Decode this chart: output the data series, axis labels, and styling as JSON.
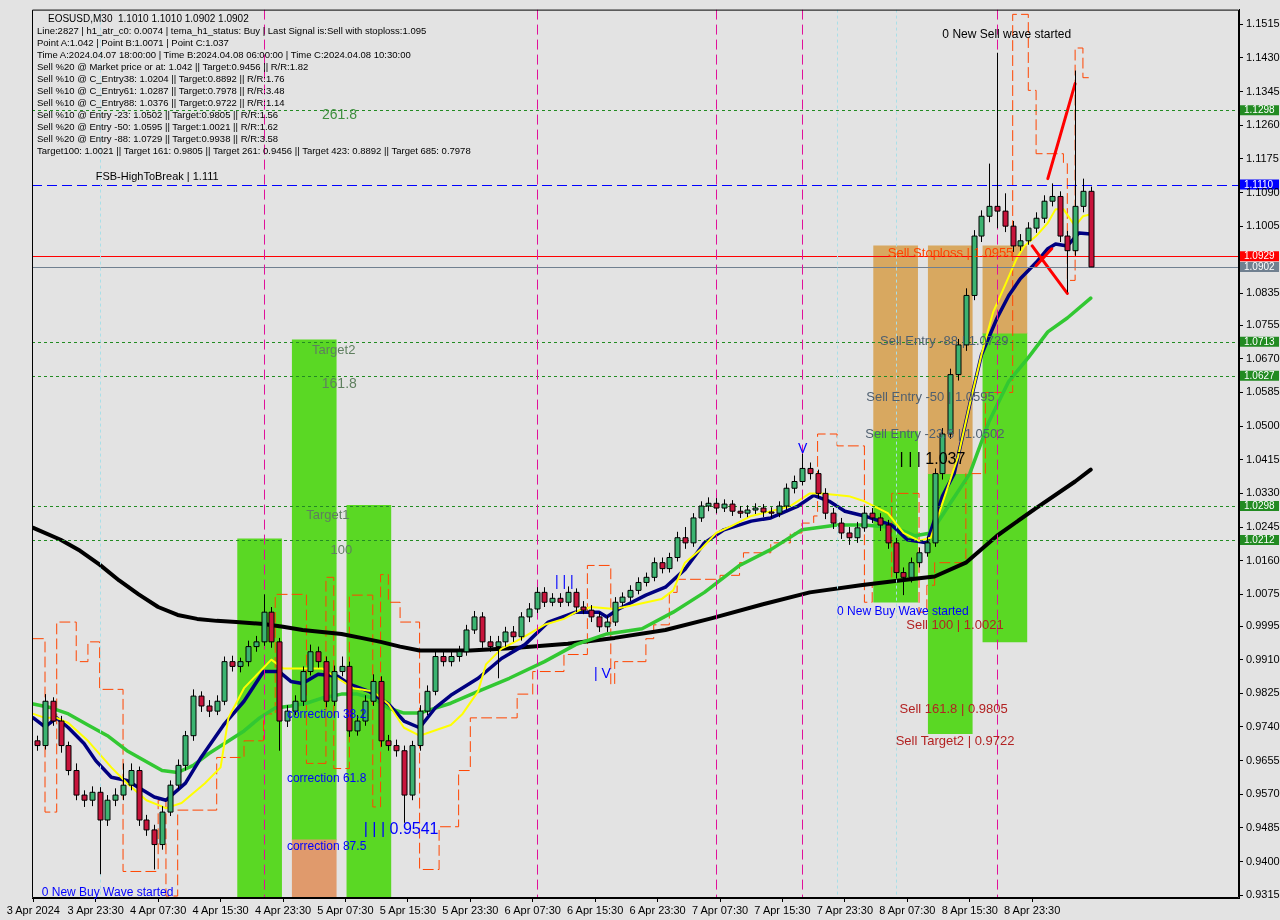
{
  "chart_data": {
    "type": "candlestick",
    "title": "EOSUSD,M30  1.1010 1.1010 1.0902 1.0902",
    "annotations": [
      "Line:2827 | h1_atr_c0: 0.0074 | tema_h1_status: Buy | Last Signal is:Sell with stoploss:1.095",
      "Point A:1.042 | Point B:1.0071 | Point C:1.037",
      "Time A:2024.04.07 18:00:00 | Time B:2024.04.08 06:00:00 | Time C:2024.04.08 10:30:00",
      "Sell %20 @ Market price or at: 1.042 || Target:0.9456 || R/R:1.82",
      "Sell %10 @ C_Entry38: 1.0204 || Target:0.8892 || R/R:1.76",
      "Sell %10 @ C_Entry61: 1.0287 || Target:0.7978 || R/R:3.48",
      "Sell %10 @ C_Entry88: 1.0376 || Target:0.9722 || R/R:1.14",
      "Sell %10 @ Entry -23: 1.0502 || Target:0.9805 || R/R:1.56",
      "Sell %20 @ Entry -50: 1.0595 || Target:1.0021 || R/R:1.62",
      "Sell %20 @ Entry -88: 1.0729 || Target:0.9938 || R/R:3.58",
      "Target100: 1.0021 || Target 161: 0.9805 || Target 261: 0.9456 || Target 423: 0.8892 || Target 685: 0.7978",
      "Target2",
      "161.8",
      "Target1",
      "100",
      "| | | 0.9541",
      "0 New Buy Wave started",
      "| | |",
      "| V",
      "Sell Entry -50 | 1.0595",
      "Sell Entry -23.6 | 1.0502",
      "Sell 100 | 1.0021",
      "0 New Sell wave started",
      {
        "text": "FSB-HighToBreak | 1.111",
        "x": "2024-04-03T23:30",
        "y": 1.1128
      },
      {
        "text": "261.8",
        "x": "2024-04-05T04:30",
        "y": 1.1285
      },
      {
        "text": "correction 38.2",
        "x": "2024-04-05T00:00",
        "y": 0.977
      },
      {
        "text": "correction 61.8",
        "x": "2024-04-05T00:00",
        "y": 0.961
      },
      {
        "text": "correction 87.5",
        "x": "2024-04-05T00:00",
        "y": 0.9438
      },
      {
        "text": "V",
        "x": "2024-04-07T17:30",
        "y": 1.0443
      },
      {
        "text": "0 New Buy Wave started",
        "x": "2024-04-07T22:30",
        "y": 1.003
      },
      {
        "text": "Sell Stoploss | 1.0955",
        "x": "2024-04-08T05:00",
        "y": 1.0935
      },
      {
        "text": "Sell Entry -88 | 1.0729",
        "x": "2024-04-08T04:00",
        "y": 1.0715
      },
      {
        "text": "| | | 1.037",
        "x": "2024-04-08T06:30",
        "y": 1.0415
      },
      {
        "text": "Sell 161.8 | 0.9805",
        "x": "2024-04-08T06:30",
        "y": 0.9785
      },
      {
        "text": "Sell Target2 | 0.9722",
        "x": "2024-04-08T06:00",
        "y": 0.9703
      }
    ],
    "x": [
      "2024-04-03T16:00",
      "2024-04-03T17:00",
      "2024-04-03T18:00",
      "2024-04-03T19:00",
      "2024-04-03T20:00",
      "2024-04-03T21:00",
      "2024-04-03T22:00",
      "2024-04-03T23:00",
      "2024-04-04T00:00",
      "2024-04-04T01:00",
      "2024-04-04T02:00",
      "2024-04-04T03:00",
      "2024-04-04T04:00",
      "2024-04-04T05:00",
      "2024-04-04T06:00",
      "2024-04-04T07:00",
      "2024-04-04T08:00",
      "2024-04-04T09:00",
      "2024-04-04T10:00",
      "2024-04-04T11:00",
      "2024-04-04T12:00",
      "2024-04-04T13:00",
      "2024-04-04T14:00",
      "2024-04-04T15:00",
      "2024-04-04T16:00",
      "2024-04-04T17:00",
      "2024-04-04T18:00",
      "2024-04-04T19:00",
      "2024-04-04T20:00",
      "2024-04-04T21:00",
      "2024-04-04T22:00",
      "2024-04-04T23:00",
      "2024-04-05T00:00",
      "2024-04-05T01:00",
      "2024-04-05T02:00",
      "2024-04-05T03:00",
      "2024-04-05T04:00",
      "2024-04-05T05:00",
      "2024-04-05T06:00",
      "2024-04-05T07:00",
      "2024-04-05T08:00",
      "2024-04-05T09:00",
      "2024-04-05T10:00",
      "2024-04-05T11:00",
      "2024-04-05T12:00",
      "2024-04-05T13:00",
      "2024-04-05T14:00",
      "2024-04-05T15:00",
      "2024-04-05T16:00",
      "2024-04-05T17:00",
      "2024-04-05T18:00",
      "2024-04-05T19:00",
      "2024-04-05T20:00",
      "2024-04-05T21:00",
      "2024-04-05T22:00",
      "2024-04-05T23:00",
      "2024-04-06T00:00",
      "2024-04-06T01:00",
      "2024-04-06T02:00",
      "2024-04-06T03:00",
      "2024-04-06T04:00",
      "2024-04-06T05:00",
      "2024-04-06T06:00",
      "2024-04-06T07:00",
      "2024-04-06T08:00",
      "2024-04-06T09:00",
      "2024-04-06T10:00",
      "2024-04-06T11:00",
      "2024-04-06T12:00",
      "2024-04-06T13:00",
      "2024-04-06T14:00",
      "2024-04-06T15:00",
      "2024-04-06T16:00",
      "2024-04-06T17:00",
      "2024-04-06T18:00",
      "2024-04-06T19:00",
      "2024-04-06T20:00",
      "2024-04-06T21:00",
      "2024-04-06T22:00",
      "2024-04-06T23:00",
      "2024-04-07T00:00",
      "2024-04-07T01:00",
      "2024-04-07T02:00",
      "2024-04-07T03:00",
      "2024-04-07T04:00",
      "2024-04-07T05:00",
      "2024-04-07T06:00",
      "2024-04-07T07:00",
      "2024-04-07T08:00",
      "2024-04-07T09:00",
      "2024-04-07T10:00",
      "2024-04-07T11:00",
      "2024-04-07T12:00",
      "2024-04-07T13:00",
      "2024-04-07T14:00",
      "2024-04-07T15:00",
      "2024-04-07T16:00",
      "2024-04-07T17:00",
      "2024-04-07T18:00",
      "2024-04-07T19:00",
      "2024-04-07T20:00",
      "2024-04-07T21:00",
      "2024-04-07T22:00",
      "2024-04-07T23:00",
      "2024-04-08T00:00",
      "2024-04-08T01:00",
      "2024-04-08T02:00",
      "2024-04-08T03:00",
      "2024-04-08T04:00",
      "2024-04-08T05:00",
      "2024-04-08T06:00",
      "2024-04-08T07:00",
      "2024-04-08T08:00",
      "2024-04-08T09:00",
      "2024-04-08T10:00",
      "2024-04-08T11:00",
      "2024-04-08T12:00",
      "2024-04-08T13:00",
      "2024-04-08T14:00",
      "2024-04-08T15:00",
      "2024-04-08T16:00",
      "2024-04-08T17:00",
      "2024-04-08T18:00",
      "2024-04-08T19:00",
      "2024-04-08T20:00",
      "2024-04-08T21:00",
      "2024-04-08T22:00",
      "2024-04-08T23:00",
      "2024-04-09T00:00",
      "2024-04-09T01:00",
      "2024-04-09T02:00",
      "2024-04-09T03:00",
      "2024-04-09T04:00",
      "2024-04-09T05:00",
      "2024-04-09T06:00",
      "2024-04-09T07:00"
    ],
    "ohlc": [
      [
        0.9705,
        0.9718,
        0.968,
        0.9693
      ],
      [
        0.9693,
        0.9823,
        0.9683,
        0.9805
      ],
      [
        0.9805,
        0.9815,
        0.9743,
        0.9755
      ],
      [
        0.9755,
        0.9768,
        0.9675,
        0.9693
      ],
      [
        0.9693,
        0.9703,
        0.9618,
        0.963
      ],
      [
        0.963,
        0.9648,
        0.9555,
        0.9568
      ],
      [
        0.9568,
        0.958,
        0.9538,
        0.9555
      ],
      [
        0.9555,
        0.959,
        0.954,
        0.9575
      ],
      [
        0.9575,
        0.9588,
        0.9368,
        0.9505
      ],
      [
        0.9505,
        0.9568,
        0.949,
        0.9555
      ],
      [
        0.9555,
        0.9585,
        0.954,
        0.9568
      ],
      [
        0.9568,
        0.9648,
        0.9555,
        0.9593
      ],
      [
        0.9593,
        0.9648,
        0.958,
        0.963
      ],
      [
        0.963,
        0.964,
        0.949,
        0.9505
      ],
      [
        0.9505,
        0.9518,
        0.9465,
        0.948
      ],
      [
        0.948,
        0.9493,
        0.938,
        0.9443
      ],
      [
        0.9443,
        0.954,
        0.943,
        0.9525
      ],
      [
        0.9525,
        0.9605,
        0.9515,
        0.9593
      ],
      [
        0.9593,
        0.9658,
        0.9583,
        0.9643
      ],
      [
        0.9643,
        0.973,
        0.963,
        0.9718
      ],
      [
        0.9718,
        0.9835,
        0.9705,
        0.9818
      ],
      [
        0.9818,
        0.983,
        0.9778,
        0.9793
      ],
      [
        0.9793,
        0.9808,
        0.9765,
        0.978
      ],
      [
        0.978,
        0.982,
        0.977,
        0.9805
      ],
      [
        0.9805,
        0.9918,
        0.9795,
        0.9905
      ],
      [
        0.9905,
        0.992,
        0.988,
        0.9893
      ],
      [
        0.9893,
        0.9915,
        0.9878,
        0.9905
      ],
      [
        0.9905,
        0.9958,
        0.9893,
        0.9943
      ],
      [
        0.9943,
        0.997,
        0.993,
        0.9955
      ],
      [
        0.9955,
        1.0075,
        0.9945,
        1.003
      ],
      [
        1.003,
        1.0043,
        0.994,
        0.9955
      ],
      [
        0.9955,
        0.9965,
        0.968,
        0.9755
      ],
      [
        0.9755,
        0.9795,
        0.974,
        0.978
      ],
      [
        0.978,
        0.982,
        0.977,
        0.9805
      ],
      [
        0.9805,
        0.9893,
        0.9793,
        0.988
      ],
      [
        0.988,
        0.9948,
        0.987,
        0.993
      ],
      [
        0.993,
        0.9943,
        0.989,
        0.9905
      ],
      [
        0.9905,
        0.9918,
        0.979,
        0.9805
      ],
      [
        0.9805,
        0.9895,
        0.9793,
        0.988
      ],
      [
        0.988,
        0.9918,
        0.9868,
        0.9893
      ],
      [
        0.9893,
        0.9905,
        0.9715,
        0.973
      ],
      [
        0.973,
        0.977,
        0.9718,
        0.9755
      ],
      [
        0.9755,
        0.982,
        0.9743,
        0.9805
      ],
      [
        0.9805,
        0.9873,
        0.9793,
        0.9855
      ],
      [
        0.9855,
        0.9868,
        0.969,
        0.9705
      ],
      [
        0.9705,
        0.972,
        0.968,
        0.9693
      ],
      [
        0.9693,
        0.9708,
        0.9665,
        0.968
      ],
      [
        0.968,
        0.9693,
        0.9498,
        0.9568
      ],
      [
        0.9568,
        0.9705,
        0.9555,
        0.9693
      ],
      [
        0.9693,
        0.9795,
        0.968,
        0.978
      ],
      [
        0.978,
        0.9845,
        0.977,
        0.983
      ],
      [
        0.983,
        0.993,
        0.982,
        0.9918
      ],
      [
        0.9918,
        0.9935,
        0.9893,
        0.9905
      ],
      [
        0.9905,
        0.993,
        0.9893,
        0.9918
      ],
      [
        0.9918,
        0.9945,
        0.9905,
        0.993
      ],
      [
        0.993,
        0.9998,
        0.992,
        0.9985
      ],
      [
        0.9985,
        1.0033,
        0.9975,
        1.0018
      ],
      [
        1.0018,
        1.003,
        0.994,
        0.9955
      ],
      [
        0.9955,
        0.997,
        0.993,
        0.9943
      ],
      [
        0.9943,
        0.997,
        0.9863,
        0.9955
      ],
      [
        0.9955,
        0.9993,
        0.9943,
        0.998
      ],
      [
        0.998,
        0.9995,
        0.9955,
        0.9968
      ],
      [
        0.9968,
        1.003,
        0.9958,
        1.0018
      ],
      [
        1.0018,
        1.0053,
        1.0005,
        1.0038
      ],
      [
        1.0038,
        1.0093,
        1.0028,
        1.008
      ],
      [
        1.008,
        1.0093,
        1.0043,
        1.0055
      ],
      [
        1.0055,
        1.0078,
        1.0045,
        1.0065
      ],
      [
        1.0065,
        1.0078,
        1.0043,
        1.0055
      ],
      [
        1.0055,
        1.0095,
        1.0045,
        1.008
      ],
      [
        1.008,
        1.009,
        1.003,
        1.0043
      ],
      [
        1.0043,
        1.0058,
        1.0025,
        1.0035
      ],
      [
        1.0035,
        1.0048,
        1.0005,
        1.0018
      ],
      [
        1.0018,
        1.003,
        0.998,
        0.9993
      ],
      [
        0.9993,
        1.002,
        0.998,
        1.0005
      ],
      [
        1.0005,
        1.0068,
        0.9995,
        1.0055
      ],
      [
        1.0055,
        1.008,
        1.0045,
        1.0068
      ],
      [
        1.0068,
        1.0098,
        1.0058,
        1.0085
      ],
      [
        1.0085,
        1.0118,
        1.0075,
        1.0105
      ],
      [
        1.0105,
        1.013,
        1.0095,
        1.0118
      ],
      [
        1.0118,
        1.0168,
        1.0108,
        1.0155
      ],
      [
        1.0155,
        1.0168,
        1.0128,
        1.014
      ],
      [
        1.014,
        1.018,
        1.013,
        1.0168
      ],
      [
        1.0168,
        1.0233,
        1.0158,
        1.0218
      ],
      [
        1.0218,
        1.0245,
        1.019,
        1.0205
      ],
      [
        1.0205,
        1.028,
        1.0195,
        1.0268
      ],
      [
        1.0268,
        1.031,
        1.0258,
        1.0298
      ],
      [
        1.0298,
        1.032,
        1.0285,
        1.0305
      ],
      [
        1.0305,
        1.0318,
        1.028,
        1.0293
      ],
      [
        1.0293,
        1.0315,
        1.0283,
        1.0303
      ],
      [
        1.0303,
        1.0313,
        1.0273,
        1.0285
      ],
      [
        1.0285,
        1.0298,
        1.0268,
        1.028
      ],
      [
        1.028,
        1.03,
        1.027,
        1.0288
      ],
      [
        1.0288,
        1.0305,
        1.0278,
        1.0293
      ],
      [
        1.0293,
        1.0303,
        1.027,
        1.0283
      ],
      [
        1.0283,
        1.0295,
        1.0268,
        1.028
      ],
      [
        1.028,
        1.031,
        1.027,
        1.0298
      ],
      [
        1.0298,
        1.0355,
        1.0288,
        1.0343
      ],
      [
        1.0343,
        1.0375,
        1.033,
        1.036
      ],
      [
        1.036,
        1.043,
        1.035,
        1.0393
      ],
      [
        1.0393,
        1.0408,
        1.0365,
        1.038
      ],
      [
        1.038,
        1.039,
        1.0318,
        1.033
      ],
      [
        1.033,
        1.0343,
        1.0265,
        1.028
      ],
      [
        1.028,
        1.0293,
        1.024,
        1.0255
      ],
      [
        1.0255,
        1.0268,
        1.0215,
        1.023
      ],
      [
        1.023,
        1.0245,
        1.02,
        1.0218
      ],
      [
        1.0218,
        1.0258,
        1.0205,
        1.0243
      ],
      [
        1.0243,
        1.0298,
        1.0233,
        1.028
      ],
      [
        1.028,
        1.0293,
        1.0255,
        1.0268
      ],
      [
        1.0268,
        1.028,
        1.0235,
        1.025
      ],
      [
        1.025,
        1.0263,
        1.019,
        1.0205
      ],
      [
        1.0205,
        1.0218,
        1.0115,
        1.013
      ],
      [
        1.013,
        1.0143,
        1.0073,
        1.0118
      ],
      [
        1.0118,
        1.0168,
        1.0105,
        1.0155
      ],
      [
        1.0155,
        1.0193,
        1.0143,
        1.018
      ],
      [
        1.018,
        1.022,
        1.017,
        1.0205
      ],
      [
        1.0205,
        1.0393,
        1.0195,
        1.038
      ],
      [
        1.038,
        1.0495,
        1.0365,
        1.048
      ],
      [
        1.048,
        1.0645,
        1.0468,
        1.063
      ],
      [
        1.063,
        1.072,
        1.0615,
        1.0705
      ],
      [
        1.0705,
        1.0848,
        1.069,
        1.083
      ],
      [
        1.083,
        1.0995,
        1.0818,
        1.098
      ],
      [
        1.098,
        1.1045,
        1.0965,
        1.103
      ],
      [
        1.103,
        1.1163,
        1.1015,
        1.1055
      ],
      [
        1.1055,
        1.1443,
        1.1,
        1.1043
      ],
      [
        1.1043,
        1.1088,
        1.099,
        1.1005
      ],
      [
        1.1005,
        1.1018,
        1.094,
        1.0955
      ],
      [
        1.0955,
        1.0985,
        1.0943,
        1.0968
      ],
      [
        1.0968,
        1.1015,
        1.0958,
        1.1
      ],
      [
        1.1,
        1.104,
        1.0988,
        1.1025
      ],
      [
        1.1025,
        1.1083,
        1.1013,
        1.1068
      ],
      [
        1.1068,
        1.1113,
        1.1055,
        1.108
      ],
      [
        1.108,
        1.1093,
        1.0965,
        1.098
      ],
      [
        1.098,
        1.0993,
        1.0838,
        1.0943
      ],
      [
        1.0943,
        1.1398,
        1.093,
        1.1055
      ],
      [
        1.1055,
        1.1125,
        1.104,
        1.1093
      ],
      [
        1.1093,
        1.1105,
        1.0902,
        1.0902
      ]
    ],
    "xlim": [
      "2024-04-03T15:20",
      "2024-04-10T02:00"
    ],
    "xticks": [
      {
        "value": "2024-04-03T15:30",
        "label": "3 Apr 2024"
      },
      {
        "value": "2024-04-03T23:30",
        "label": "3 Apr 23:30"
      },
      {
        "value": "2024-04-04T07:30",
        "label": "4 Apr 07:30"
      },
      {
        "value": "2024-04-04T15:30",
        "label": "4 Apr 15:30"
      },
      {
        "value": "2024-04-04T23:30",
        "label": "4 Apr 23:30"
      },
      {
        "value": "2024-04-05T07:30",
        "label": "5 Apr 07:30"
      },
      {
        "value": "2024-04-05T15:30",
        "label": "5 Apr 15:30"
      },
      {
        "value": "2024-04-05T23:30",
        "label": "5 Apr 23:30"
      },
      {
        "value": "2024-04-06T07:30",
        "label": "6 Apr 07:30"
      },
      {
        "value": "2024-04-06T15:30",
        "label": "6 Apr 15:30"
      },
      {
        "value": "2024-04-06T23:30",
        "label": "6 Apr 23:30"
      },
      {
        "value": "2024-04-07T07:30",
        "label": "7 Apr 07:30"
      },
      {
        "value": "2024-04-07T15:30",
        "label": "7 Apr 15:30"
      },
      {
        "value": "2024-04-07T23:30",
        "label": "7 Apr 23:30"
      },
      {
        "value": "2024-04-08T07:30",
        "label": "8 Apr 07:30"
      },
      {
        "value": "2024-04-08T15:30",
        "label": "8 Apr 15:30"
      },
      {
        "value": "2024-04-08T23:30",
        "label": "8 Apr 23:30"
      }
    ],
    "ylim": [
      0.9308,
      1.1552
    ],
    "yticks": [
      0.9315,
      {
        "value": 0.94,
        "label": "0.9400"
      },
      0.9485,
      {
        "value": 0.957,
        "label": "0.9570"
      },
      0.9655,
      {
        "value": 0.974,
        "label": "0.9740"
      },
      0.9825,
      {
        "value": 0.991,
        "label": "0.9910"
      },
      0.9995,
      1.0075,
      {
        "value": 1.016,
        "label": "1.0160"
      },
      1.0245,
      {
        "value": 1.033,
        "label": "1.0330"
      },
      1.0415,
      {
        "value": 1.05,
        "label": "1.0500"
      },
      1.0585,
      {
        "value": 1.067,
        "label": "1.0670"
      },
      1.0755,
      1.0835,
      1.1005,
      {
        "value": 1.109,
        "label": "1.1090"
      },
      1.1175,
      {
        "value": 1.126,
        "label": "1.1260"
      },
      1.1345,
      {
        "value": 1.143,
        "label": "1.1430"
      },
      1.1515
    ],
    "series": [
      {
        "type": "bar",
        "color": "#5ad824",
        "x": [
          "2024-04-04T20:30",
          "2024-04-05T03:30",
          "2024-04-05T10:30",
          "2024-04-08T06:00",
          "2024-04-08T13:00",
          "2024-04-08T20:00"
        ],
        "base": [
          0.931,
          0.9455,
          0.931,
          1.0055,
          0.9723,
          0.9955
        ],
        "values": [
          0.0905,
          0.1263,
          0.099,
          0.0433,
          0.0657,
          0.078
        ]
      },
      {
        "type": "bar",
        "colors": [
          "#e09a6c",
          "#d8a860",
          "#d8a860",
          "#d8a860"
        ],
        "x": [
          "2024-04-05T03:30",
          "2024-04-08T06:00",
          "2024-04-08T13:00",
          "2024-04-08T20:00"
        ],
        "base": [
          0.931,
          1.0488,
          1.038,
          1.0735
        ],
        "values": [
          0.0145,
          0.0467,
          0.0575,
          0.022
        ]
      },
      {
        "type": "step",
        "color": "#ff4500",
        "line_style": "dashed",
        "x": [
          "2024-04-03T15:30",
          "2024-04-03T17:00",
          "2024-04-03T18:30",
          "2024-04-03T21:00",
          "2024-04-03T22:30",
          "2024-04-04T00:00",
          "2024-04-04T03:00",
          "2024-04-04T07:30",
          "2024-04-04T08:30",
          "2024-04-04T10:00",
          "2024-04-04T15:00",
          "2024-04-04T18:30",
          "2024-04-04T21:00",
          "2024-04-04T22:30",
          "2024-04-05T02:30",
          "2024-04-05T05:00",
          "2024-04-05T06:00",
          "2024-04-05T08:00",
          "2024-04-05T11:00",
          "2024-04-05T12:00",
          "2024-04-05T13:00",
          "2024-04-05T14:30",
          "2024-04-05T17:00",
          "2024-04-05T19:30",
          "2024-04-05T22:00",
          "2024-04-05T23:30",
          "2024-04-06T05:30",
          "2024-04-06T07:30",
          "2024-04-06T11:30",
          "2024-04-06T14:30",
          "2024-04-06T17:30",
          "2024-04-06T18:00",
          "2024-04-06T22:00",
          "2024-04-06T23:00",
          "2024-04-07T01:00",
          "2024-04-07T02:00",
          "2024-04-07T07:30",
          "2024-04-07T10:00",
          "2024-04-07T10:30",
          "2024-04-07T14:00",
          "2024-04-07T16:30",
          "2024-04-07T18:00",
          "2024-04-07T19:30",
          "2024-04-07T20:00",
          "2024-04-07T22:30",
          "2024-04-08T02:00",
          "2024-04-08T03:00",
          "2024-04-08T05:30",
          "2024-04-08T09:00",
          "2024-04-08T10:00",
          "2024-04-08T11:00",
          "2024-04-08T15:00",
          "2024-04-08T17:30",
          "2024-04-08T21:00",
          "2024-04-08T23:00",
          "2024-04-09T00:00",
          "2024-04-09T03:30",
          "2024-04-09T04:00",
          "2024-04-09T05:00",
          "2024-04-09T06:00",
          "2024-04-09T07:00"
        ],
        "values": [
          0.9963,
          0.9525,
          1.0005,
          0.9905,
          0.9955,
          0.9835,
          0.9375,
          0.9555,
          0.9313,
          0.953,
          0.9663,
          0.9705,
          0.9773,
          1.0075,
          0.9648,
          1.0118,
          0.9635,
          1.0073,
          0.9538,
          1.0125,
          1.0055,
          1.0005,
          0.938,
          0.9488,
          0.963,
          0.9763,
          0.9823,
          0.988,
          0.9923,
          1.0148,
          0.9848,
          0.9905,
          0.9963,
          0.9998,
          1.008,
          1.0113,
          1.0123,
          1.0155,
          1.018,
          1.0205,
          1.023,
          1.0255,
          1.0273,
          1.048,
          1.045,
          1.0055,
          1.0105,
          1.033,
          1.003,
          1.0098,
          1.0155,
          1.038,
          1.0585,
          1.154,
          1.1348,
          1.1188,
          1.1163,
          1.0868,
          1.1455,
          1.138,
          1.138
        ]
      },
      {
        "type": "line",
        "color": "#000000",
        "x": [
          "2024-04-03T15:30",
          "2024-04-03T19:00",
          "2024-04-03T21:30",
          "2024-04-04T00:00",
          "2024-04-04T02:30",
          "2024-04-04T05:00",
          "2024-04-04T07:30",
          "2024-04-04T10:00",
          "2024-04-04T12:30",
          "2024-04-04T15:00",
          "2024-04-04T17:30",
          "2024-04-04T21:00",
          "2024-04-04T23:30",
          "2024-04-05T02:00",
          "2024-04-05T04:30",
          "2024-04-05T07:00",
          "2024-04-05T09:30",
          "2024-04-05T12:00",
          "2024-04-05T14:30",
          "2024-04-05T17:00",
          "2024-04-05T23:30",
          "2024-04-06T05:30",
          "2024-04-06T12:00",
          "2024-04-06T18:00",
          "2024-04-07T00:30",
          "2024-04-07T06:30",
          "2024-04-07T13:00",
          "2024-04-07T19:00",
          "2024-04-08T01:30",
          "2024-04-08T06:30",
          "2024-04-08T11:00",
          "2024-04-08T15:00",
          "2024-04-08T19:00",
          "2024-04-09T00:00",
          "2024-04-09T05:00",
          "2024-04-09T07:00"
        ],
        "values": [
          1.0243,
          1.0213,
          1.0185,
          1.015,
          1.011,
          1.0075,
          1.0043,
          1.0023,
          1.0013,
          1.0008,
          1.0005,
          1.0,
          0.9993,
          0.9985,
          0.998,
          0.9975,
          0.9965,
          0.9955,
          0.9943,
          0.9933,
          0.9933,
          0.994,
          0.995,
          0.9965,
          0.9985,
          1.0015,
          1.005,
          1.008,
          1.0098,
          1.011,
          1.012,
          1.0155,
          1.0223,
          1.0293,
          1.036,
          1.039
        ]
      },
      {
        "type": "line",
        "color": "#32c832",
        "x": [
          "2024-04-03T15:30",
          "2024-04-03T17:30",
          "2024-04-03T20:00",
          "2024-04-03T22:30",
          "2024-04-04T01:00",
          "2024-04-04T03:30",
          "2024-04-04T08:00",
          "2024-04-04T10:00",
          "2024-04-04T12:00",
          "2024-04-04T14:00",
          "2024-04-04T16:00",
          "2024-04-04T18:30",
          "2024-04-04T20:30",
          "2024-04-04T22:30",
          "2024-04-05T00:30",
          "2024-04-05T02:30",
          "2024-04-05T04:30",
          "2024-04-05T07:00",
          "2024-04-05T09:00",
          "2024-04-05T11:00",
          "2024-04-05T13:00",
          "2024-04-05T15:00",
          "2024-04-05T17:00",
          "2024-04-05T21:00",
          "2024-04-06T00:30",
          "2024-04-06T04:30",
          "2024-04-06T09:00",
          "2024-04-06T13:00",
          "2024-04-06T17:00",
          "2024-04-06T21:30",
          "2024-04-07T01:30",
          "2024-04-07T05:30",
          "2024-04-07T10:00",
          "2024-04-07T14:00",
          "2024-04-07T18:00",
          "2024-04-07T22:30",
          "2024-04-08T02:00",
          "2024-04-08T06:00",
          "2024-04-08T08:30",
          "2024-04-08T10:30",
          "2024-04-08T13:00",
          "2024-04-08T15:30",
          "2024-04-08T18:00",
          "2024-04-08T20:30",
          "2024-04-08T23:00",
          "2024-04-09T01:30",
          "2024-04-09T04:00",
          "2024-04-09T07:00"
        ],
        "values": [
          0.9798,
          0.979,
          0.9773,
          0.9745,
          0.9718,
          0.968,
          0.963,
          0.9625,
          0.9643,
          0.9673,
          0.9698,
          0.973,
          0.9763,
          0.9788,
          0.9793,
          0.98,
          0.9813,
          0.9823,
          0.9823,
          0.9813,
          0.9788,
          0.9775,
          0.9775,
          0.98,
          0.983,
          0.9863,
          0.9905,
          0.9948,
          0.9975,
          0.9988,
          1.003,
          1.008,
          1.0148,
          1.0188,
          1.0238,
          1.025,
          1.025,
          1.0243,
          1.0223,
          1.023,
          1.0305,
          1.038,
          1.0513,
          1.0613,
          1.0673,
          1.0738,
          1.0773,
          1.0823
        ]
      },
      {
        "type": "line",
        "color": "#000080",
        "x": [
          "2024-04-03T15:30",
          "2024-04-03T17:00",
          "2024-04-03T18:30",
          "2024-04-03T20:00",
          "2024-04-03T22:00",
          "2024-04-03T23:30",
          "2024-04-04T01:30",
          "2024-04-04T03:30",
          "2024-04-04T07:00",
          "2024-04-04T08:30",
          "2024-04-04T11:00",
          "2024-04-04T13:00",
          "2024-04-04T16:00",
          "2024-04-04T18:30",
          "2024-04-04T21:00",
          "2024-04-04T23:00",
          "2024-04-05T00:30",
          "2024-04-05T02:00",
          "2024-04-05T04:00",
          "2024-04-05T06:30",
          "2024-04-05T08:00",
          "2024-04-05T10:30",
          "2024-04-05T13:00",
          "2024-04-05T15:00",
          "2024-04-05T17:00",
          "2024-04-05T19:00",
          "2024-04-05T21:00",
          "2024-04-06T00:30",
          "2024-04-06T03:30",
          "2024-04-06T06:30",
          "2024-04-06T09:30",
          "2024-04-06T13:00",
          "2024-04-06T16:00",
          "2024-04-06T17:00",
          "2024-04-06T18:30",
          "2024-04-06T22:00",
          "2024-04-07T00:30",
          "2024-04-07T03:00",
          "2024-04-07T05:30",
          "2024-04-07T08:00",
          "2024-04-07T11:30",
          "2024-04-07T14:00",
          "2024-04-07T17:30",
          "2024-04-07T19:30",
          "2024-04-07T21:30",
          "2024-04-07T23:30",
          "2024-04-08T02:00",
          "2024-04-08T05:30",
          "2024-04-08T07:30",
          "2024-04-08T10:00",
          "2024-04-08T12:00",
          "2024-04-08T13:30",
          "2024-04-08T15:30",
          "2024-04-08T17:00",
          "2024-04-08T19:00",
          "2024-04-08T20:30",
          "2024-04-08T22:00",
          "2024-04-09T00:00",
          "2024-04-09T01:30",
          "2024-04-09T02:30",
          "2024-04-09T04:00",
          "2024-04-09T05:30",
          "2024-04-09T07:00"
        ],
        "values": [
          0.9763,
          0.974,
          0.9763,
          0.9738,
          0.9698,
          0.9655,
          0.9613,
          0.9605,
          0.9563,
          0.9555,
          0.9598,
          0.9663,
          0.9748,
          0.9805,
          0.988,
          0.988,
          0.9855,
          0.985,
          0.9873,
          0.9868,
          0.9848,
          0.983,
          0.9798,
          0.9755,
          0.9738,
          0.9788,
          0.982,
          0.9863,
          0.9913,
          0.9948,
          1.0005,
          1.003,
          1.003,
          1.0018,
          1.0038,
          1.0073,
          1.0093,
          1.0138,
          1.0205,
          1.0238,
          1.026,
          1.0268,
          1.0298,
          1.0325,
          1.031,
          1.0285,
          1.0273,
          1.025,
          1.0213,
          1.0205,
          1.0323,
          1.038,
          1.0555,
          1.068,
          1.0773,
          1.083,
          1.0873,
          1.0913,
          1.0948,
          1.096,
          1.0955,
          1.0988,
          1.0985
        ]
      },
      {
        "type": "line",
        "color": "#ffff00",
        "x": [
          "2024-04-03T15:30",
          "2024-04-03T17:00",
          "2024-04-03T18:30",
          "2024-04-03T20:00",
          "2024-04-03T22:30",
          "2024-04-04T01:30",
          "2024-04-04T03:30",
          "2024-04-04T06:00",
          "2024-04-04T08:30",
          "2024-04-04T10:30",
          "2024-04-04T13:30",
          "2024-04-04T15:30",
          "2024-04-04T16:30",
          "2024-04-04T18:30",
          "2024-04-04T22:00",
          "2024-04-04T23:30",
          "2024-04-05T02:00",
          "2024-04-05T04:30",
          "2024-04-05T06:30",
          "2024-04-05T08:30",
          "2024-04-05T11:00",
          "2024-04-05T13:00",
          "2024-04-05T15:00",
          "2024-04-05T17:00",
          "2024-04-05T19:30",
          "2024-04-05T21:00",
          "2024-04-05T22:30",
          "2024-04-06T00:30",
          "2024-04-06T01:30",
          "2024-04-06T03:30",
          "2024-04-06T06:00",
          "2024-04-06T09:00",
          "2024-04-06T11:30",
          "2024-04-06T13:30",
          "2024-04-06T15:00",
          "2024-04-06T18:00",
          "2024-04-06T20:30",
          "2024-04-07T00:00",
          "2024-04-07T01:30",
          "2024-04-07T03:00",
          "2024-04-07T05:00",
          "2024-04-07T07:00",
          "2024-04-07T09:00",
          "2024-04-07T11:30",
          "2024-04-07T14:00",
          "2024-04-07T16:30",
          "2024-04-07T19:00",
          "2024-04-07T20:30",
          "2024-04-08T00:00",
          "2024-04-08T02:00",
          "2024-04-08T05:00",
          "2024-04-08T07:00",
          "2024-04-08T09:00",
          "2024-04-08T10:30",
          "2024-04-08T14:00",
          "2024-04-08T15:30",
          "2024-04-08T17:00",
          "2024-04-08T18:30",
          "2024-04-08T20:00",
          "2024-04-08T21:30",
          "2024-04-08T22:30",
          "2024-04-09T00:00",
          "2024-04-09T01:30",
          "2024-04-09T02:30",
          "2024-04-09T03:30",
          "2024-04-09T05:00",
          "2024-04-09T06:00",
          "2024-04-09T07:00"
        ],
        "values": [
          0.9773,
          0.9763,
          0.9763,
          0.975,
          0.9705,
          0.9638,
          0.9598,
          0.9555,
          0.9535,
          0.9548,
          0.9598,
          0.9638,
          0.9763,
          0.9838,
          0.991,
          0.9888,
          0.9888,
          0.9888,
          0.9863,
          0.9838,
          0.983,
          0.9798,
          0.9738,
          0.9718,
          0.9735,
          0.9745,
          0.9773,
          0.983,
          0.9898,
          0.9938,
          0.9963,
          0.9998,
          1.0013,
          1.0035,
          1.0043,
          1.0038,
          1.0048,
          1.0063,
          1.0085,
          1.0155,
          1.0188,
          1.023,
          1.0248,
          1.0273,
          1.0285,
          1.0298,
          1.033,
          1.033,
          1.0323,
          1.031,
          1.028,
          1.023,
          1.021,
          1.0218,
          1.0423,
          1.0555,
          1.068,
          1.0788,
          1.0855,
          1.0923,
          1.0955,
          1.098,
          1.1013,
          1.1048,
          1.1048,
          1.1005,
          1.103,
          1.1035
        ]
      },
      {
        "type": "line",
        "color": "#ff0000",
        "x": [
          "2024-04-09T05:00",
          "2024-04-09T01:30"
        ],
        "values": [
          1.1365,
          1.1125
        ]
      },
      {
        "type": "line",
        "color": "#ff0000",
        "x": [
          "2024-04-08T23:30",
          "2024-04-09T04:00"
        ],
        "values": [
          1.0955,
          1.0835
        ]
      },
      {
        "type": "line",
        "color": "#ff0000",
        "x": [
          "2024-04-09T00:00",
          "2024-04-09T02:00"
        ],
        "values": [
          1.0905,
          1.0948
        ]
      }
    ],
    "ref_lines": [
      {
        "axis": "y",
        "value": 1.1298,
        "label": "1.1298",
        "color": "#228b22",
        "line_style": "dotted"
      },
      {
        "axis": "y",
        "value": 1.111,
        "label": "1.1110",
        "color": "#0000ff",
        "line_style": "dashed"
      },
      {
        "axis": "y",
        "value": 1.0929,
        "label": "1.0929",
        "color": "#ff0000",
        "line_style": "solid"
      },
      {
        "axis": "y",
        "value": 1.0902,
        "label": "1.0902",
        "color": "#708090",
        "line_style": "solid"
      },
      {
        "axis": "y",
        "value": 1.0713,
        "label": "1.0713",
        "color": "#228b22",
        "line_style": "dotted"
      },
      {
        "axis": "y",
        "value": 1.0627,
        "label": "1.0627",
        "color": "#228b22",
        "line_style": "dotted"
      },
      {
        "axis": "y",
        "value": 1.0298,
        "label": "1.0298",
        "color": "#228b22",
        "line_style": "dotted"
      },
      {
        "axis": "y",
        "value": 1.0212,
        "label": "1.0212",
        "color": "#228b22",
        "line_style": "dotted"
      },
      {
        "axis": "x",
        "value": "2024-04-04T21:00",
        "color": "#e0119a",
        "line_style": "dashed"
      },
      {
        "axis": "x",
        "value": "2024-04-06T08:00",
        "color": "#e0119a",
        "line_style": "dashed"
      },
      {
        "axis": "x",
        "value": "2024-04-07T07:00",
        "color": "#e0119a",
        "line_style": "dashed"
      },
      {
        "axis": "x",
        "value": "2024-04-07T18:00",
        "color": "#e0119a",
        "line_style": "dashed"
      },
      {
        "axis": "x",
        "value": "2024-04-08T19:00",
        "color": "#e0119a",
        "line_style": "dashed"
      },
      {
        "axis": "x",
        "value": "2024-04-04T00:00",
        "color": "#a9dfe8",
        "line_style": "dotted"
      },
      {
        "axis": "x",
        "value": "2024-04-07T22:30",
        "color": "#a9dfe8",
        "line_style": "dotted"
      },
      {
        "axis": "x",
        "value": "2024-04-08T06:00",
        "color": "#a9dfe8",
        "line_style": "dotted"
      }
    ],
    "legend": false
  }
}
